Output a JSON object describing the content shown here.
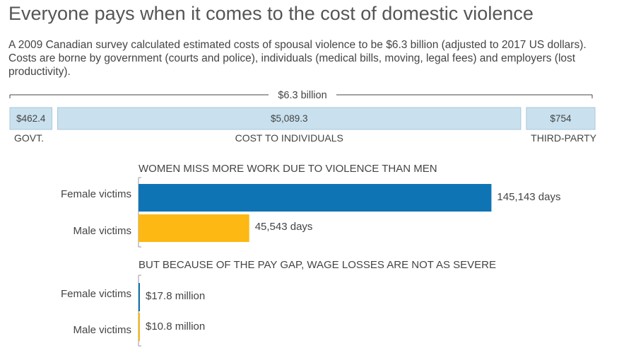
{
  "title": "Everyone pays when it comes to the cost of domestic violence",
  "subtitle": "A 2009 Canadian survey calculated estimated costs of spousal violence to be $6.3 billion (adjusted to 2017 US dollars). Costs are borne by government (courts and police), individuals (medical bills, moving, legal fees) and employers (lost productivity).",
  "colors": {
    "cost_bar": "#c9e1ee",
    "cost_bar_border": "#a9c8d9",
    "female": "#0f74b4",
    "male": "#fdb813",
    "text": "#444444",
    "axis": "#999999"
  },
  "chart_data": [
    {
      "type": "bar",
      "orientation": "horizontal-stacked",
      "total_label": "$6.3 billion",
      "categories": [
        "GOVT.",
        "COST TO INDIVIDUALS",
        "THIRD-PARTY"
      ],
      "values": [
        462.4,
        5089.3,
        754
      ],
      "value_labels": [
        "$462.4",
        "$5,089.3",
        "$754"
      ],
      "unit": "million USD"
    },
    {
      "type": "bar",
      "orientation": "horizontal",
      "title": "WOMEN MISS MORE WORK DUE TO VIOLENCE THAN MEN",
      "categories": [
        "Female victims",
        "Male victims"
      ],
      "values": [
        145143,
        45543
      ],
      "value_labels": [
        "145,143 days",
        "45,543 days"
      ],
      "xlim": [
        0,
        152000
      ]
    },
    {
      "type": "bar",
      "orientation": "horizontal",
      "title": "BUT BECAUSE OF THE PAY GAP, WAGE LOSSES ARE NOT AS SEVERE",
      "categories": [
        "Female victims",
        "Male victims"
      ],
      "values": [
        17.8,
        10.8
      ],
      "value_labels": [
        "$17.8 million",
        "$10.8 million"
      ],
      "unit": "million USD",
      "xlim": [
        0,
        2400
      ]
    }
  ]
}
